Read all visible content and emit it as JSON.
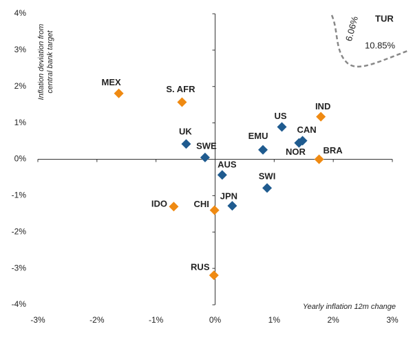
{
  "chart_data": {
    "type": "scatter",
    "y_label": [
      "Inflation deviation from",
      "central bank target"
    ],
    "x_label": "Yearly inflation 12m change",
    "xlim": [
      -3,
      3
    ],
    "xticks": [
      {
        "value": -3,
        "label": "-3%"
      },
      {
        "value": -2,
        "label": "-2%"
      },
      {
        "value": -1,
        "label": "-1%"
      },
      {
        "value": 0,
        "label": "0%"
      },
      {
        "value": 1,
        "label": "1%"
      },
      {
        "value": 2,
        "label": "2%"
      },
      {
        "value": 3,
        "label": "3%"
      }
    ],
    "ylim": [
      -4,
      4
    ],
    "yticks": [
      {
        "value": -4,
        "label": "-4%"
      },
      {
        "value": -3,
        "label": "-3%"
      },
      {
        "value": -2,
        "label": "-2%"
      },
      {
        "value": -1,
        "label": "-1%"
      },
      {
        "value": 0,
        "label": "0%"
      },
      {
        "value": 1,
        "label": "1%"
      },
      {
        "value": 2,
        "label": "2%"
      },
      {
        "value": 3,
        "label": "3%"
      },
      {
        "value": 4,
        "label": "4%"
      }
    ],
    "series": [
      {
        "color": "#1f5b8f",
        "labels": [
          "UK",
          "SWE",
          "US",
          "EMU",
          "CAN",
          "NOR",
          "AUS",
          "SWI",
          "JPN"
        ],
        "x": [
          -0.49,
          -0.17,
          1.13,
          0.81,
          1.48,
          1.42,
          0.12,
          0.88,
          0.29
        ],
        "y": [
          0.42,
          0.05,
          0.89,
          0.26,
          0.51,
          0.45,
          -0.43,
          -0.79,
          -1.28
        ]
      },
      {
        "color": "#ef8a12",
        "labels": [
          "MEX",
          "S. AFR",
          "IND",
          "BRA",
          "IDO",
          "CHI",
          "RUS"
        ],
        "x": [
          -1.63,
          -0.56,
          1.79,
          1.76,
          -0.7,
          -0.01,
          -0.02
        ],
        "y": [
          1.81,
          1.57,
          1.17,
          0.0,
          -1.3,
          -1.4,
          -3.19
        ]
      }
    ],
    "annotations": [
      "TUR",
      "6.06%",
      "10.85%"
    ]
  }
}
